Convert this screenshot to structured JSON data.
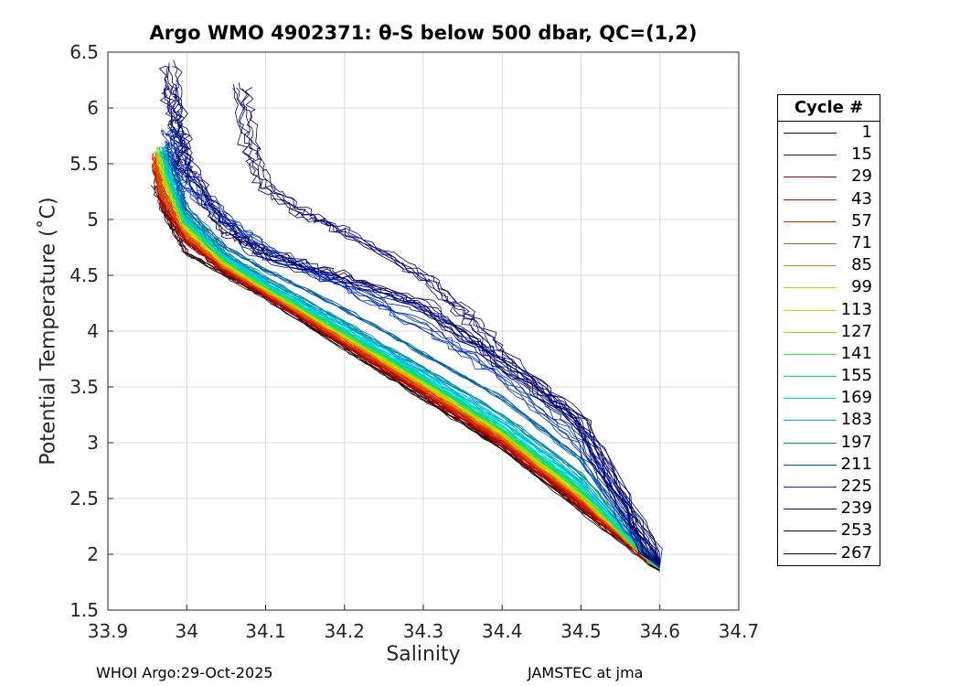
{
  "title": "Argo WMO 4902371: θ-S below 500 dbar,  QC=(1,2)",
  "footer_left": "WHOI Argo:29-Oct-2025",
  "footer_right": "JAMSTEC at jma",
  "legend": {
    "title": "Cycle #",
    "items": [
      {
        "label": "1",
        "color": "#2a0000"
      },
      {
        "label": "15",
        "color": "#8c0000"
      },
      {
        "label": "29",
        "color": "#b40000"
      },
      {
        "label": "43",
        "color": "#cc1100"
      },
      {
        "label": "57",
        "color": "#dc3300"
      },
      {
        "label": "71",
        "color": "#d96000"
      },
      {
        "label": "85",
        "color": "#d98c00"
      },
      {
        "label": "99",
        "color": "#e0c800"
      },
      {
        "label": "113",
        "color": "#c8e000"
      },
      {
        "label": "127",
        "color": "#90e000"
      },
      {
        "label": "141",
        "color": "#40dd40"
      },
      {
        "label": "155",
        "color": "#00d890"
      },
      {
        "label": "169",
        "color": "#00d8c8"
      },
      {
        "label": "183",
        "color": "#00b8e0"
      },
      {
        "label": "197",
        "color": "#0090a0"
      },
      {
        "label": "211",
        "color": "#0060a0"
      },
      {
        "label": "225",
        "color": "#0030c0"
      },
      {
        "label": "239",
        "color": "#00108a"
      },
      {
        "label": "253",
        "color": "#000070"
      },
      {
        "label": "267",
        "color": "#00005a"
      }
    ]
  },
  "chart_data": {
    "type": "line",
    "title": "Argo WMO 4902371: θ-S below 500 dbar,  QC=(1,2)",
    "xlabel": "Salinity",
    "ylabel": "Potential Temperature (˚C)",
    "xlim": [
      33.9,
      34.7
    ],
    "ylim": [
      1.5,
      6.5
    ],
    "xticks": [
      "33.9",
      "34",
      "34.1",
      "34.2",
      "34.3",
      "34.4",
      "34.5",
      "34.6",
      "34.7"
    ],
    "yticks": [
      "1.5",
      "2",
      "2.5",
      "3",
      "3.5",
      "4",
      "4.5",
      "5",
      "5.5",
      "6",
      "6.5"
    ],
    "grid": true,
    "legend_position": "outside-right",
    "series": [
      {
        "name": "1",
        "color": "#2a0000",
        "x": [
          33.96,
          33.98,
          34.0,
          34.05,
          34.1,
          34.2,
          34.3,
          34.4,
          34.5,
          34.6
        ],
        "y": [
          5.3,
          4.95,
          4.7,
          4.5,
          4.3,
          3.85,
          3.4,
          2.95,
          2.4,
          1.85
        ]
      },
      {
        "name": "15",
        "color": "#8c0000",
        "x": [
          33.96,
          33.97,
          34.0,
          34.05,
          34.1,
          34.2,
          34.3,
          34.4,
          34.5,
          34.6
        ],
        "y": [
          5.45,
          5.1,
          4.8,
          4.52,
          4.32,
          3.88,
          3.43,
          2.98,
          2.43,
          1.86
        ]
      },
      {
        "name": "29",
        "color": "#b40000",
        "x": [
          33.96,
          33.97,
          34.0,
          34.05,
          34.1,
          34.2,
          34.3,
          34.4,
          34.5,
          34.6
        ],
        "y": [
          5.55,
          5.15,
          4.82,
          4.53,
          4.33,
          3.89,
          3.45,
          3.0,
          2.45,
          1.87
        ]
      },
      {
        "name": "43",
        "color": "#cc1100",
        "x": [
          33.96,
          33.97,
          34.0,
          34.05,
          34.1,
          34.2,
          34.3,
          34.4,
          34.5,
          34.6
        ],
        "y": [
          5.5,
          5.2,
          4.85,
          4.55,
          4.34,
          3.9,
          3.47,
          3.02,
          2.47,
          1.87
        ]
      },
      {
        "name": "57",
        "color": "#dc3300",
        "x": [
          33.96,
          33.97,
          34.0,
          34.05,
          34.1,
          34.2,
          34.3,
          34.4,
          34.5,
          34.6
        ],
        "y": [
          5.6,
          5.25,
          4.87,
          4.56,
          4.35,
          3.91,
          3.48,
          3.03,
          2.48,
          1.87
        ]
      },
      {
        "name": "71",
        "color": "#d96000",
        "x": [
          33.96,
          33.97,
          34.0,
          34.05,
          34.1,
          34.2,
          34.3,
          34.4,
          34.5,
          34.6
        ],
        "y": [
          5.5,
          5.22,
          4.86,
          4.57,
          4.36,
          3.93,
          3.5,
          3.05,
          2.5,
          1.87
        ]
      },
      {
        "name": "85",
        "color": "#d98c00",
        "x": [
          33.965,
          33.975,
          34.0,
          34.05,
          34.1,
          34.2,
          34.3,
          34.4,
          34.5,
          34.6
        ],
        "y": [
          5.55,
          5.3,
          4.9,
          4.58,
          4.37,
          3.95,
          3.52,
          3.07,
          2.52,
          1.87
        ]
      },
      {
        "name": "99",
        "color": "#e0c800",
        "x": [
          33.965,
          33.975,
          34.0,
          34.05,
          34.1,
          34.2,
          34.3,
          34.4,
          34.5,
          34.6
        ],
        "y": [
          5.6,
          5.32,
          4.92,
          4.6,
          4.38,
          3.96,
          3.53,
          3.08,
          2.53,
          1.87
        ]
      },
      {
        "name": "113",
        "color": "#c8e000",
        "x": [
          33.965,
          33.975,
          34.0,
          34.05,
          34.1,
          34.2,
          34.3,
          34.4,
          34.5,
          34.6
        ],
        "y": [
          5.55,
          5.33,
          4.93,
          4.61,
          4.39,
          3.97,
          3.55,
          3.1,
          2.55,
          1.87
        ]
      },
      {
        "name": "127",
        "color": "#90e000",
        "x": [
          33.965,
          33.975,
          34.0,
          34.05,
          34.1,
          34.2,
          34.3,
          34.4,
          34.5,
          34.6
        ],
        "y": [
          5.65,
          5.35,
          4.95,
          4.62,
          4.4,
          3.98,
          3.56,
          3.11,
          2.56,
          1.87
        ]
      },
      {
        "name": "141",
        "color": "#40dd40",
        "x": [
          33.97,
          33.98,
          34.0,
          34.05,
          34.1,
          34.2,
          34.3,
          34.4,
          34.5,
          34.6
        ],
        "y": [
          5.6,
          5.3,
          4.96,
          4.63,
          4.41,
          3.99,
          3.57,
          3.12,
          2.57,
          1.87
        ]
      },
      {
        "name": "155",
        "color": "#00d890",
        "x": [
          33.97,
          33.98,
          34.0,
          34.05,
          34.1,
          34.2,
          34.3,
          34.4,
          34.5,
          34.6
        ],
        "y": [
          5.65,
          5.35,
          4.98,
          4.64,
          4.42,
          4.0,
          3.58,
          3.14,
          2.59,
          1.87
        ]
      },
      {
        "name": "169",
        "color": "#00d8c8",
        "x": [
          33.97,
          33.98,
          34.0,
          34.05,
          34.1,
          34.2,
          34.3,
          34.4,
          34.5,
          34.6
        ],
        "y": [
          5.6,
          5.38,
          5.0,
          4.66,
          4.43,
          4.02,
          3.6,
          3.16,
          2.62,
          1.87
        ]
      },
      {
        "name": "183",
        "color": "#00b8e0",
        "x": [
          33.97,
          33.98,
          34.0,
          34.05,
          34.1,
          34.2,
          34.3,
          34.4,
          34.5,
          34.6
        ],
        "y": [
          5.65,
          5.4,
          5.02,
          4.68,
          4.45,
          4.05,
          3.63,
          3.2,
          2.66,
          1.88
        ]
      },
      {
        "name": "197",
        "color": "#0090a0",
        "x": [
          33.975,
          33.985,
          34.0,
          34.05,
          34.1,
          34.2,
          34.3,
          34.4,
          34.5,
          34.6
        ],
        "y": [
          5.6,
          5.42,
          5.05,
          4.7,
          4.48,
          4.08,
          3.67,
          3.25,
          2.72,
          1.88
        ]
      },
      {
        "name": "211",
        "color": "#0060a0",
        "x": [
          33.975,
          33.985,
          34.0,
          34.05,
          34.1,
          34.2,
          34.3,
          34.4,
          34.5,
          34.6
        ],
        "y": [
          5.7,
          5.45,
          5.1,
          4.75,
          4.55,
          4.2,
          3.8,
          3.4,
          2.85,
          1.88
        ]
      },
      {
        "name": "225",
        "color": "#0030c0",
        "x": [
          33.98,
          33.99,
          34.0,
          34.05,
          34.1,
          34.2,
          34.3,
          34.4,
          34.5,
          34.6
        ],
        "y": [
          5.8,
          5.6,
          5.3,
          5.0,
          4.75,
          4.4,
          4.05,
          3.6,
          3.0,
          1.88
        ]
      },
      {
        "name": "239",
        "color": "#00108a",
        "x": [
          33.98,
          33.99,
          34.0,
          34.05,
          34.1,
          34.2,
          34.3,
          34.4,
          34.5,
          34.6
        ],
        "y": [
          6.2,
          5.8,
          5.45,
          5.0,
          4.65,
          4.45,
          4.2,
          3.75,
          3.15,
          1.9
        ]
      },
      {
        "name": "253",
        "color": "#000070",
        "x": [
          34.07,
          34.08,
          34.1,
          34.15,
          34.2,
          34.3,
          34.35,
          34.4,
          34.5,
          34.6
        ],
        "y": [
          6.2,
          5.7,
          5.3,
          5.05,
          4.9,
          4.5,
          4.2,
          3.8,
          3.2,
          1.9
        ]
      },
      {
        "name": "267",
        "color": "#00005a",
        "x": [
          33.98,
          33.99,
          34.0,
          34.05,
          34.1,
          34.2,
          34.3,
          34.4,
          34.5,
          34.6
        ],
        "y": [
          6.4,
          5.9,
          5.5,
          4.9,
          4.7,
          4.5,
          4.25,
          3.7,
          3.2,
          1.9
        ]
      }
    ]
  }
}
